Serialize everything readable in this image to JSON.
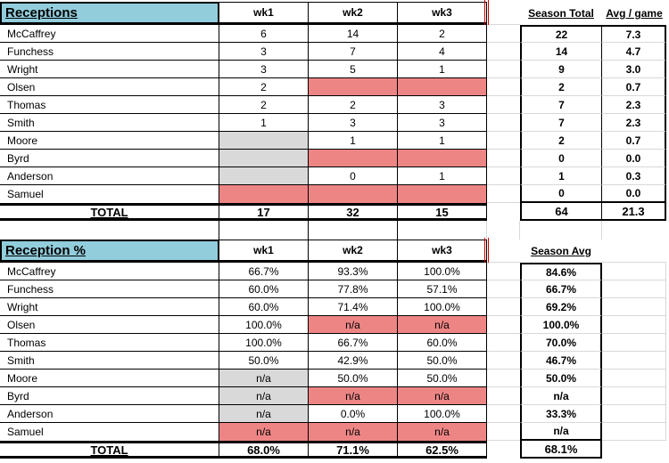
{
  "colors": {
    "header_blue": "#92CDDC",
    "missed_red": "#EE8585",
    "empty_gray": "#D9D9D9",
    "gridline_gray": "#D8D8D8",
    "page_break_red": "#CC0000",
    "note_green": "#1E7B34"
  },
  "tables": [
    {
      "id": "table1",
      "key": "receptions",
      "title": "Receptions",
      "week_headers": [
        "wk1",
        "wk2",
        "wk3"
      ],
      "summary_headers": [
        "Season Total",
        "Avg / game"
      ],
      "summary_fields": [
        "season_total",
        "avg_per_game"
      ],
      "rows": [
        {
          "name": "McCaffrey",
          "wk": [
            "6",
            "14",
            "2"
          ],
          "wk_fill": [
            "none",
            "none",
            "none"
          ],
          "season_total": "22",
          "avg_per_game": "7.3"
        },
        {
          "name": "Funchess",
          "wk": [
            "3",
            "7",
            "4"
          ],
          "wk_fill": [
            "none",
            "none",
            "none"
          ],
          "season_total": "14",
          "avg_per_game": "4.7"
        },
        {
          "name": "Wright",
          "wk": [
            "3",
            "5",
            "1"
          ],
          "wk_fill": [
            "none",
            "none",
            "none"
          ],
          "season_total": "9",
          "avg_per_game": "3.0"
        },
        {
          "name": "Olsen",
          "wk": [
            "2",
            "",
            ""
          ],
          "wk_fill": [
            "none",
            "red",
            "red"
          ],
          "season_total": "2",
          "avg_per_game": "0.7"
        },
        {
          "name": "Thomas",
          "wk": [
            "2",
            "2",
            "3"
          ],
          "wk_fill": [
            "none",
            "none",
            "none"
          ],
          "season_total": "7",
          "avg_per_game": "2.3"
        },
        {
          "name": "Smith",
          "wk": [
            "1",
            "3",
            "3"
          ],
          "wk_fill": [
            "none",
            "none",
            "none"
          ],
          "season_total": "7",
          "avg_per_game": "2.3"
        },
        {
          "name": "Moore",
          "wk": [
            "",
            "1",
            "1"
          ],
          "wk_fill": [
            "gray",
            "none",
            "none"
          ],
          "season_total": "2",
          "avg_per_game": "0.7"
        },
        {
          "name": "Byrd",
          "wk": [
            "",
            "",
            ""
          ],
          "wk_fill": [
            "gray",
            "red",
            "red"
          ],
          "season_total": "0",
          "avg_per_game": "0.0"
        },
        {
          "name": "Anderson",
          "wk": [
            "",
            "0",
            "1"
          ],
          "wk_fill": [
            "gray",
            "none",
            "none"
          ],
          "season_total": "1",
          "avg_per_game": "0.3"
        },
        {
          "name": "Samuel",
          "wk": [
            "",
            "",
            ""
          ],
          "wk_fill": [
            "red",
            "red",
            "red"
          ],
          "season_total": "0",
          "avg_per_game": "0.0"
        }
      ],
      "total_row": {
        "label": "TOTAL",
        "wk": [
          "17",
          "32",
          "15"
        ],
        "season_total": "64",
        "avg_per_game": "21.3"
      }
    },
    {
      "id": "table2",
      "key": "reception-pct",
      "title": "Reception %",
      "week_headers": [
        "wk1",
        "wk2",
        "wk3"
      ],
      "summary_headers": [
        "Season Avg"
      ],
      "summary_fields": [
        "season_avg"
      ],
      "rows": [
        {
          "name": "McCaffrey",
          "wk": [
            "66.7%",
            "93.3%",
            "100.0%"
          ],
          "wk_fill": [
            "none",
            "none",
            "none"
          ],
          "season_avg": "84.6%"
        },
        {
          "name": "Funchess",
          "wk": [
            "60.0%",
            "77.8%",
            "57.1%"
          ],
          "wk_fill": [
            "none",
            "none",
            "none"
          ],
          "season_avg": "66.7%"
        },
        {
          "name": "Wright",
          "wk": [
            "60.0%",
            "71.4%",
            "100.0%"
          ],
          "wk_fill": [
            "none",
            "none",
            "none"
          ],
          "season_avg": "69.2%"
        },
        {
          "name": "Olsen",
          "wk": [
            "100.0%",
            "n/a",
            "n/a"
          ],
          "wk_fill": [
            "none",
            "red",
            "red"
          ],
          "season_avg": "100.0%"
        },
        {
          "name": "Thomas",
          "wk": [
            "100.0%",
            "66.7%",
            "60.0%"
          ],
          "wk_fill": [
            "none",
            "none",
            "none"
          ],
          "season_avg": "70.0%"
        },
        {
          "name": "Smith",
          "wk": [
            "50.0%",
            "42.9%",
            "50.0%"
          ],
          "wk_fill": [
            "none",
            "none",
            "none"
          ],
          "season_avg": "46.7%"
        },
        {
          "name": "Moore",
          "wk": [
            "n/a",
            "50.0%",
            "50.0%"
          ],
          "wk_fill": [
            "gray",
            "none",
            "none"
          ],
          "season_avg": "50.0%"
        },
        {
          "name": "Byrd",
          "wk": [
            "n/a",
            "n/a",
            "n/a"
          ],
          "wk_fill": [
            "gray",
            "red",
            "red"
          ],
          "season_avg": "n/a",
          "note": true
        },
        {
          "name": "Anderson",
          "wk": [
            "n/a",
            "0.0%",
            "100.0%"
          ],
          "wk_fill": [
            "gray",
            "none",
            "none"
          ],
          "season_avg": "33.3%"
        },
        {
          "name": "Samuel",
          "wk": [
            "n/a",
            "n/a",
            "n/a"
          ],
          "wk_fill": [
            "red",
            "red",
            "red"
          ],
          "season_avg": "n/a"
        }
      ],
      "total_row": {
        "label": "TOTAL",
        "wk": [
          "68.0%",
          "71.1%",
          "62.5%"
        ],
        "season_avg": "68.1%"
      }
    }
  ]
}
